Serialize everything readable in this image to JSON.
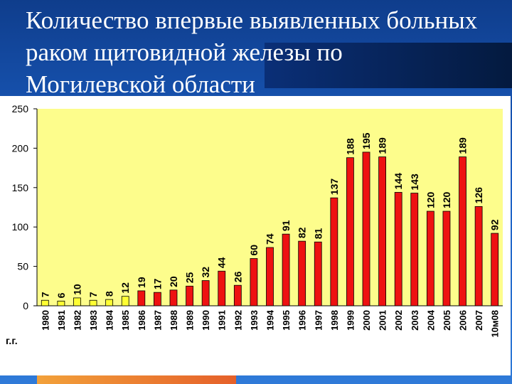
{
  "slide": {
    "title": "Количество впервые выявленных больных\nраком щитовидной железы по\nМогилевской области"
  },
  "colors": {
    "plot_background": "#fdfd8c",
    "pre_accident_bar": "#ffff33",
    "post_accident_bar": "#ee1111",
    "bar_border": "#000000"
  },
  "chart_data": {
    "type": "bar",
    "title": "",
    "xlabel": "г.г.",
    "ylabel": "",
    "ylim": [
      0,
      250
    ],
    "yticks": [
      0,
      50,
      100,
      150,
      200,
      250
    ],
    "grid": false,
    "categories": [
      "1980",
      "1981",
      "1982",
      "1983",
      "1984",
      "1985",
      "1986",
      "1987",
      "1988",
      "1989",
      "1990",
      "1991",
      "1992",
      "1993",
      "1994",
      "1995",
      "1996",
      "1997",
      "1998",
      "1999",
      "2000",
      "2001",
      "2002",
      "2003",
      "2004",
      "2005",
      "2006",
      "2007",
      "10м08"
    ],
    "values": [
      7,
      6,
      10,
      7,
      8,
      12,
      19,
      17,
      20,
      25,
      32,
      44,
      26,
      60,
      74,
      91,
      82,
      81,
      137,
      188,
      195,
      189,
      144,
      143,
      120,
      120,
      189,
      126,
      92
    ],
    "bar_colors": [
      "#ffff33",
      "#ffff33",
      "#ffff33",
      "#ffff33",
      "#ffff33",
      "#ffff33",
      "#ee1111",
      "#ee1111",
      "#ee1111",
      "#ee1111",
      "#ee1111",
      "#ee1111",
      "#ee1111",
      "#ee1111",
      "#ee1111",
      "#ee1111",
      "#ee1111",
      "#ee1111",
      "#ee1111",
      "#ee1111",
      "#ee1111",
      "#ee1111",
      "#ee1111",
      "#ee1111",
      "#ee1111",
      "#ee1111",
      "#ee1111",
      "#ee1111",
      "#ee1111"
    ]
  }
}
